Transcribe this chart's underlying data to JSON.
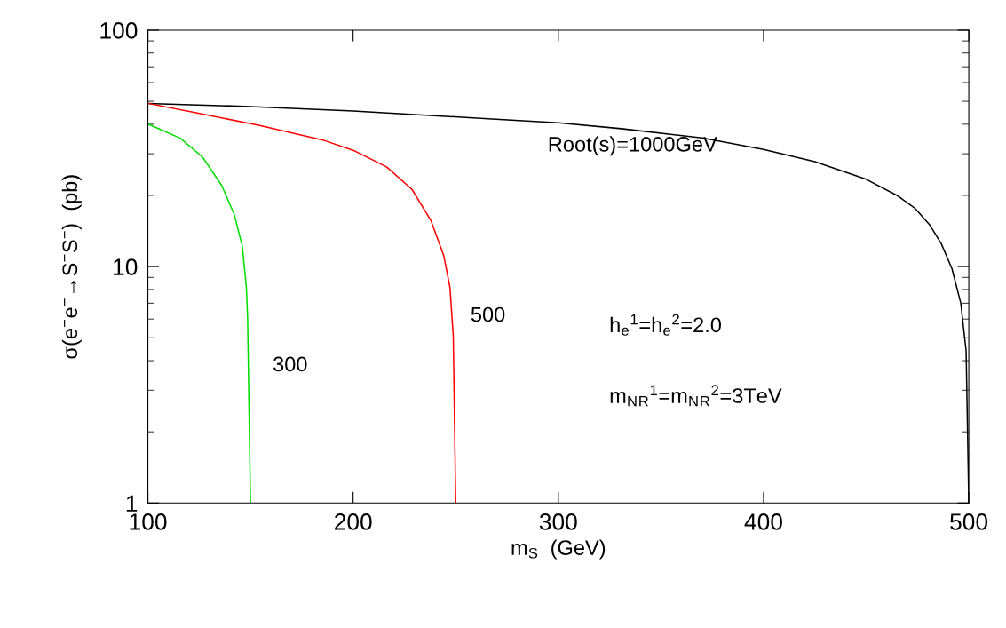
{
  "chart_data": {
    "type": "line",
    "xlabel": "m$_{S}$  (GeV)",
    "ylabel": "σ(e$^{−}$e$^{−}$→S$^{−}$S$^{−}$)  (pb)",
    "log": "y",
    "xlim": [
      100,
      500
    ],
    "ylim": [
      1,
      100
    ],
    "xticks": [
      100,
      200,
      300,
      400,
      500
    ],
    "yticks": [
      1,
      10,
      100
    ],
    "grid": false,
    "marker": "none",
    "line_style": "solid",
    "series": [
      {
        "color": "#000000",
        "x": [
          100,
          150,
          200,
          265.8,
          300,
          330.7,
          370,
          400,
          425,
          450,
          465,
          473.6,
          481,
          486.6,
          491.8,
          496.1,
          498.7,
          500
        ],
        "values": [
          49,
          47.5,
          45.5,
          42.2,
          40.6,
          38.3,
          35,
          31.3,
          27.8,
          23.4,
          20,
          17.7,
          15,
          12.5,
          9.8,
          7.0,
          4.4,
          1
        ]
      },
      {
        "color": "#ff0000",
        "x": [
          100,
          123.5,
          154.5,
          185.3,
          200.9,
          216.3,
          228.7,
          238,
          244.2,
          247.2,
          248.8,
          250
        ],
        "values": [
          49,
          44.7,
          39.5,
          34.3,
          30.8,
          26.4,
          21.2,
          15.6,
          11.1,
          8.15,
          5.1,
          1
        ]
      },
      {
        "color": "#00dd00",
        "x": [
          100,
          115.8,
          126.7,
          136,
          142.1,
          146,
          148,
          148.6,
          150
        ],
        "values": [
          40.1,
          34.9,
          29,
          22,
          16.6,
          12.2,
          8.15,
          6.0,
          1
        ]
      }
    ],
    "annotations": [
      "300",
      "500",
      "Root(s)=1000GeV",
      "h$_{e}$$^{1}$=h$_{e}$$^{2}$=2.0",
      "m$_{N}$$_{R}$$^{1}$=m$_{N}$$_{R}$$^{2}$=3TeV"
    ]
  }
}
